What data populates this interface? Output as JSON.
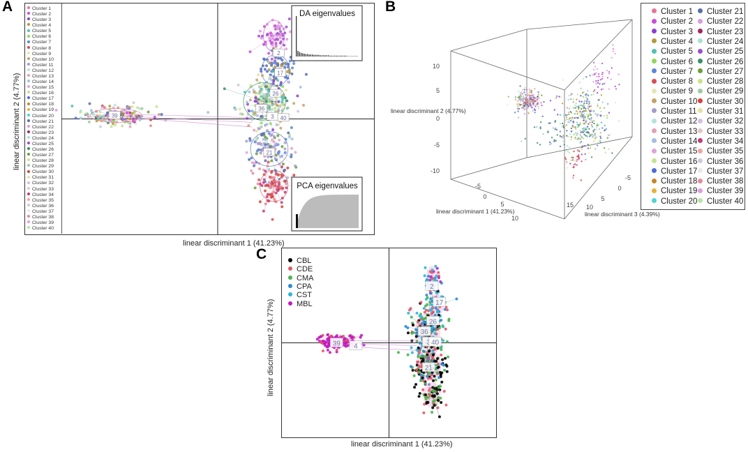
{
  "panels": {
    "a": {
      "letter": "A"
    },
    "b": {
      "letter": "B"
    },
    "c": {
      "letter": "C"
    }
  },
  "colors": {
    "cluster_palette": [
      "#e8749a",
      "#c84fd6",
      "#8b3fd0",
      "#b59a3c",
      "#4fc2b0",
      "#8ed857",
      "#5c86d9",
      "#d65050",
      "#e6e6b3",
      "#c8a06b",
      "#a59bd0",
      "#b5e3d9",
      "#e3a0b5",
      "#a3c0e3",
      "#e0a3d9",
      "#c5e38b",
      "#4f6bd9",
      "#c8852c",
      "#e6b23c",
      "#4fd3d6",
      "#5a6fa8",
      "#d99be0",
      "#a3275f",
      "#a9e3d0",
      "#9d4fc9",
      "#3a8f67",
      "#6b9e3c",
      "#cce38b",
      "#9fc9a3",
      "#d6433c",
      "#e3e3a0",
      "#d0c0e0",
      "#e3c7c7",
      "#c23c7a",
      "#f0a3a3",
      "#d0c8d9",
      "#e8e8e8",
      "#e38b9c",
      "#e39be0",
      "#b8e3a3"
    ],
    "region": {
      "CBL": "#000000",
      "CDE": "#e05a68",
      "CMA": "#4db34d",
      "CPA": "#2a8ad6",
      "CST": "#2ab7d6",
      "MBL": "#c21ac2"
    }
  },
  "chart_data": [
    {
      "type": "scatter",
      "panel": "A",
      "xlabel": "linear discriminant 1 (41.23%)",
      "ylabel": "linear discriminant 2 (4.77%)",
      "legend": [
        "Cluster 1",
        "Cluster 2",
        "Cluster 3",
        "Cluster 4",
        "Cluster 5",
        "Cluster 6",
        "Cluster 7",
        "Cluster 8",
        "Cluster 9",
        "Cluster 10",
        "Cluster 11",
        "Cluster 12",
        "Cluster 13",
        "Cluster 14",
        "Cluster 15",
        "Cluster 16",
        "Cluster 17",
        "Cluster 18",
        "Cluster 19",
        "Cluster 20",
        "Cluster 21",
        "Cluster 22",
        "Cluster 23",
        "Cluster 24",
        "Cluster 25",
        "Cluster 26",
        "Cluster 27",
        "Cluster 28",
        "Cluster 29",
        "Cluster 30",
        "Cluster 31",
        "Cluster 32",
        "Cluster 33",
        "Cluster 34",
        "Cluster 35",
        "Cluster 36",
        "Cluster 37",
        "Cluster 38",
        "Cluster 39",
        "Cluster 40"
      ],
      "legend_position": "left",
      "xlim": [
        -10,
        10
      ],
      "ylim": [
        -10,
        10
      ],
      "groups": [
        {
          "name": "left group",
          "center": [
            -6.5,
            0.3
          ],
          "spread": [
            1.1,
            0.45
          ]
        },
        {
          "name": "upper-right group",
          "center": [
            3.6,
            6.5
          ],
          "spread": [
            0.5,
            1.1
          ]
        },
        {
          "name": "middle-right group",
          "center": [
            3.0,
            1.5
          ],
          "spread": [
            0.9,
            1.6
          ]
        },
        {
          "name": "lower-right group",
          "center": [
            3.6,
            -5.6
          ],
          "spread": [
            0.6,
            1.0
          ]
        }
      ],
      "centroid_labels": [
        {
          "label": "2",
          "x": 3.9,
          "y": 5.7
        },
        {
          "label": "17",
          "x": 4.0,
          "y": 4.0
        },
        {
          "label": "26",
          "x": 3.7,
          "y": 2.2
        },
        {
          "label": "36",
          "x": 2.8,
          "y": 0.9
        },
        {
          "label": "3",
          "x": 3.5,
          "y": 0.2
        },
        {
          "label": "40",
          "x": 4.2,
          "y": 0.1
        },
        {
          "label": "21",
          "x": 3.3,
          "y": -2.9
        },
        {
          "label": "39",
          "x": -6.6,
          "y": 0.3
        }
      ],
      "insets": [
        {
          "title": "DA eigenvalues",
          "values": [
            100,
            14,
            11,
            9,
            8,
            7,
            6,
            6,
            5,
            5,
            5,
            4,
            4,
            4,
            4,
            3,
            3,
            3,
            3,
            3,
            3,
            2,
            2,
            2,
            2,
            2,
            2,
            2,
            2,
            2,
            2,
            2,
            1,
            1,
            1,
            1,
            1,
            1,
            1
          ]
        },
        {
          "title": "PCA eigenvalues",
          "shape": "cumulative"
        }
      ]
    },
    {
      "type": "scatter3d",
      "panel": "B",
      "xlabel": "linear discriminant 1 (41.23%)",
      "ylabel": "linear discriminant 2 (4.77%)",
      "zlabel": "linear discriminant 3 (4.39%)",
      "x_ticks": [
        "-5",
        "0",
        "5",
        "10"
      ],
      "y_ticks": [
        "10",
        "5",
        "0",
        "-5",
        "-10"
      ],
      "z_ticks": [
        "15",
        "10",
        "5",
        "0",
        "-5"
      ],
      "legend": [
        "Cluster 1",
        "Cluster 2",
        "Cluster 3",
        "Cluster 4",
        "Cluster 5",
        "Cluster 6",
        "Cluster 7",
        "Cluster 8",
        "Cluster 9",
        "Cluster 10",
        "Cluster 11",
        "Cluster 12",
        "Cluster 13",
        "Cluster 14",
        "Cluster 15",
        "Cluster 16",
        "Cluster 17",
        "Cluster 18",
        "Cluster 19",
        "Cluster 20",
        "Cluster 21",
        "Cluster 22",
        "Cluster 23",
        "Cluster 24",
        "Cluster 25",
        "Cluster 26",
        "Cluster 27",
        "Cluster 28",
        "Cluster 29",
        "Cluster 30",
        "Cluster 31",
        "Cluster 32",
        "Cluster 33",
        "Cluster 34",
        "Cluster 35",
        "Cluster 36",
        "Cluster 37",
        "Cluster 38",
        "Cluster 39",
        "Cluster 40"
      ],
      "legend_position": "right"
    },
    {
      "type": "scatter",
      "panel": "C",
      "xlabel": "linear discriminant 1 (41.23%)",
      "ylabel": "linear discriminant 2 (4.77%)",
      "legend": [
        "CBL",
        "CDE",
        "CMA",
        "CPA",
        "CST",
        "MBL"
      ],
      "legend_position": "top-left",
      "xlim": [
        -10,
        10
      ],
      "ylim": [
        -10,
        10
      ],
      "centroid_labels": [
        {
          "label": "2",
          "x": 4.0,
          "y": 6.0
        },
        {
          "label": "17",
          "x": 4.7,
          "y": 4.3
        },
        {
          "label": "26",
          "x": 4.1,
          "y": 2.3
        },
        {
          "label": "36",
          "x": 3.3,
          "y": 1.2
        },
        {
          "label": "3",
          "x": 3.7,
          "y": 0.1
        },
        {
          "label": "40",
          "x": 4.3,
          "y": 0.1
        },
        {
          "label": "21",
          "x": 3.7,
          "y": -2.6
        },
        {
          "label": "39",
          "x": -4.9,
          "y": 0.0
        },
        {
          "label": "4",
          "x": -3.1,
          "y": -0.3
        }
      ]
    }
  ]
}
